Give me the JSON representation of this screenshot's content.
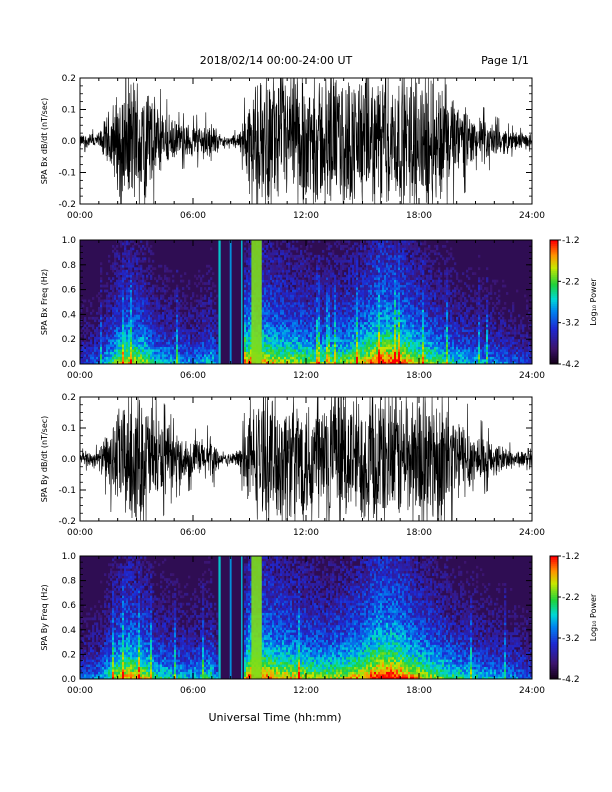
{
  "header": {
    "title": "2018/02/14  00:00-24:00 UT",
    "page": "Page 1/1"
  },
  "footer": {
    "xlabel": "Universal Time (hh:mm)"
  },
  "chart_data": [
    {
      "type": "line",
      "ylabel": "SPA Bx dB/dt (nT/sec)",
      "xlim": [
        "00:00",
        "24:00"
      ],
      "ylim": [
        -0.2,
        0.2
      ],
      "xticks": [
        "00:00",
        "06:00",
        "12:00",
        "18:00",
        "24:00"
      ],
      "yticks": [
        "-0.2",
        "-0.1",
        "0.0",
        "0.1",
        "0.2"
      ],
      "envelope": {
        "hours": [
          0,
          1,
          2,
          2.5,
          3,
          3.5,
          4,
          5,
          6,
          7,
          7.5,
          8,
          8.5,
          9,
          10,
          11,
          12,
          13,
          14,
          15,
          16,
          17,
          18,
          19,
          20,
          21,
          22,
          23,
          24
        ],
        "amplitude": [
          0.02,
          0.025,
          0.15,
          0.2,
          0.2,
          0.2,
          0.12,
          0.06,
          0.05,
          0.06,
          0.015,
          0.015,
          0.03,
          0.15,
          0.2,
          0.2,
          0.2,
          0.2,
          0.2,
          0.2,
          0.2,
          0.2,
          0.2,
          0.2,
          0.12,
          0.08,
          0.05,
          0.03,
          0.02
        ]
      }
    },
    {
      "type": "heatmap",
      "ylabel": "SPA Bx Freq (Hz)",
      "xlim": [
        "00:00",
        "24:00"
      ],
      "ylim": [
        0.0,
        1.0
      ],
      "xticks": [
        "00:00",
        "06:00",
        "12:00",
        "18:00",
        "24:00"
      ],
      "yticks": [
        "0.0",
        "0.2",
        "0.4",
        "0.6",
        "0.8",
        "1.0"
      ],
      "colorbar": {
        "label": "Log₁₀ Power",
        "range": [
          -4.2,
          -1.2
        ],
        "ticks": [
          "-1.2",
          "-2.2",
          "-3.2",
          "-4.2"
        ]
      },
      "activity": {
        "hours": [
          0,
          1,
          2,
          2.5,
          3,
          3.5,
          4,
          5,
          6,
          7,
          7.5,
          8,
          8.5,
          9,
          10,
          11,
          12,
          13,
          14,
          15,
          16,
          17,
          18,
          19,
          20,
          21,
          22,
          23,
          24
        ],
        "level": [
          0.25,
          0.3,
          0.6,
          0.7,
          0.65,
          0.6,
          0.45,
          0.4,
          0.35,
          0.45,
          0.2,
          0.2,
          0.3,
          0.8,
          0.7,
          0.65,
          0.6,
          0.55,
          0.6,
          0.7,
          0.85,
          0.8,
          0.65,
          0.55,
          0.45,
          0.4,
          0.35,
          0.3,
          0.25
        ]
      }
    },
    {
      "type": "line",
      "ylabel": "SPA By dB/dt (nT/sec)",
      "xlim": [
        "00:00",
        "24:00"
      ],
      "ylim": [
        -0.2,
        0.2
      ],
      "xticks": [
        "00:00",
        "06:00",
        "12:00",
        "18:00",
        "24:00"
      ],
      "yticks": [
        "-0.2",
        "-0.1",
        "0.0",
        "0.1",
        "0.2"
      ],
      "envelope": {
        "hours": [
          0,
          1,
          2,
          2.5,
          3,
          3.5,
          4,
          5,
          6,
          7,
          7.5,
          8,
          8.5,
          9,
          10,
          11,
          12,
          13,
          14,
          15,
          16,
          17,
          18,
          19,
          20,
          21,
          22,
          23,
          24
        ],
        "amplitude": [
          0.02,
          0.03,
          0.15,
          0.2,
          0.2,
          0.2,
          0.14,
          0.08,
          0.06,
          0.07,
          0.015,
          0.015,
          0.04,
          0.16,
          0.2,
          0.2,
          0.2,
          0.2,
          0.2,
          0.2,
          0.2,
          0.2,
          0.2,
          0.2,
          0.14,
          0.09,
          0.05,
          0.03,
          0.02
        ]
      }
    },
    {
      "type": "heatmap",
      "ylabel": "SPA By Freq (Hz)",
      "xlim": [
        "00:00",
        "24:00"
      ],
      "ylim": [
        0.0,
        1.0
      ],
      "xticks": [
        "00:00",
        "06:00",
        "12:00",
        "18:00",
        "24:00"
      ],
      "yticks": [
        "0.0",
        "0.2",
        "0.4",
        "0.6",
        "0.8",
        "1.0"
      ],
      "colorbar": {
        "label": "Log₁₀ Power",
        "range": [
          -4.2,
          -1.2
        ],
        "ticks": [
          "-1.2",
          "-2.2",
          "-3.2",
          "-4.2"
        ]
      },
      "activity": {
        "hours": [
          0,
          1,
          2,
          2.5,
          3,
          3.5,
          4,
          5,
          6,
          7,
          7.5,
          8,
          8.5,
          9,
          10,
          11,
          12,
          13,
          14,
          15,
          16,
          17,
          18,
          19,
          20,
          21,
          22,
          23,
          24
        ],
        "level": [
          0.3,
          0.35,
          0.65,
          0.75,
          0.7,
          0.65,
          0.5,
          0.45,
          0.4,
          0.5,
          0.2,
          0.2,
          0.35,
          0.85,
          0.75,
          0.7,
          0.65,
          0.6,
          0.65,
          0.75,
          0.9,
          0.85,
          0.7,
          0.6,
          0.5,
          0.45,
          0.4,
          0.35,
          0.3
        ]
      }
    }
  ]
}
